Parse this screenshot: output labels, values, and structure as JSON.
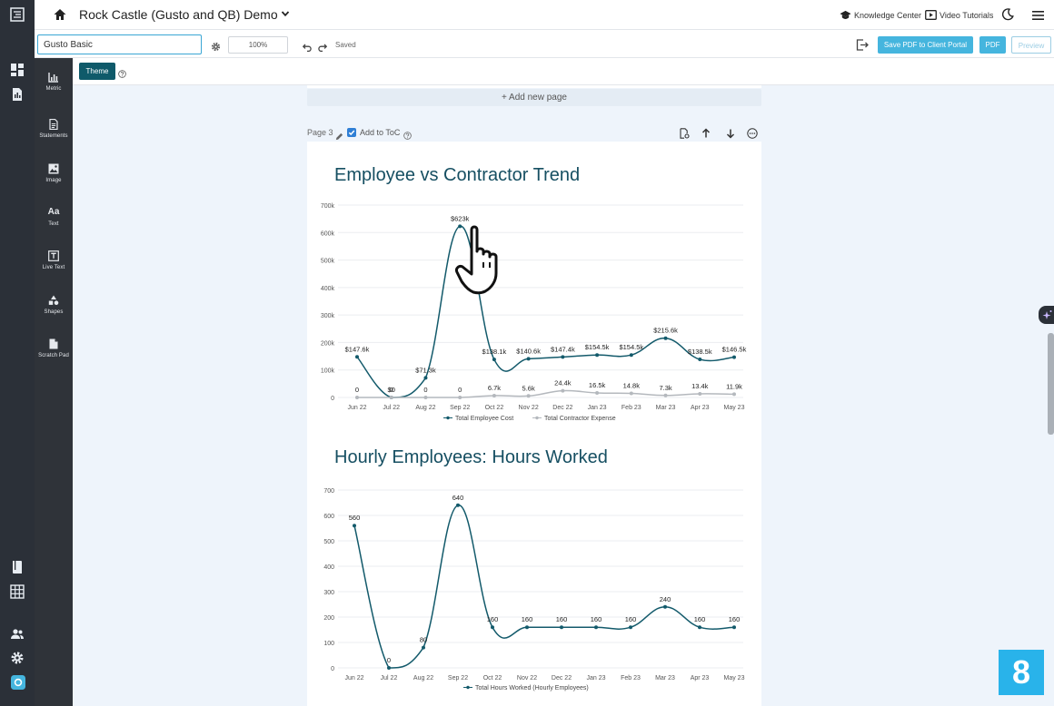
{
  "header": {
    "company_title": "Rock Castle (Gusto and QB) Demo",
    "knowledge_center": "Knowledge Center",
    "video_tutorials": "Video Tutorials"
  },
  "toolbar": {
    "template_name": "Gusto Basic",
    "zoom": "100%",
    "saved_status": "Saved",
    "save_pdf_label": "Save PDF to Client Portal",
    "pdf_label": "PDF",
    "preview_label": "Preview"
  },
  "tools": [
    {
      "label": "Metric",
      "icon": "metric-icon"
    },
    {
      "label": "Statements",
      "icon": "statements-icon"
    },
    {
      "label": "Image",
      "icon": "image-icon"
    },
    {
      "label": "Text",
      "icon": "text-icon"
    },
    {
      "label": "Live Text",
      "icon": "live-text-icon"
    },
    {
      "label": "Shapes",
      "icon": "shapes-icon"
    },
    {
      "label": "Scratch Pad",
      "icon": "scratch-pad-icon"
    }
  ],
  "theme_label": "Theme",
  "canvas": {
    "add_page_label": "+ Add new page",
    "page_label": "Page 3",
    "toc_label": "Add to ToC",
    "toc_checked": true
  },
  "colors": {
    "primary_series": "#135a6b",
    "secondary_series": "#b4b8bd",
    "accent": "#45b5de",
    "theme_button": "#0f5a6a"
  },
  "step_badge": "8",
  "chart_data": [
    {
      "type": "line",
      "title": "Employee vs Contractor Trend",
      "categories": [
        "Jun 22",
        "Jul 22",
        "Aug 22",
        "Sep 22",
        "Oct 22",
        "Nov 22",
        "Dec 22",
        "Jan 23",
        "Feb 23",
        "Mar 23",
        "Apr 23",
        "May 23"
      ],
      "y_ticks": [
        "0",
        "100k",
        "200k",
        "300k",
        "400k",
        "500k",
        "600k",
        "700k"
      ],
      "ylim": [
        0,
        700000
      ],
      "grid": true,
      "legend_position": "bottom",
      "series": [
        {
          "name": "Total Employee Cost",
          "values": [
            147600,
            0,
            71300,
            623000,
            138100,
            140600,
            147400,
            154500,
            154500,
            215600,
            138500,
            146500
          ],
          "labels": [
            "$147.6k",
            "$0",
            "$71.3k",
            "$623k",
            "$138.1k",
            "$140.6k",
            "$147.4k",
            "$154.5k",
            "$154.5k",
            "$215.6k",
            "$138.5k",
            "$146.5k"
          ]
        },
        {
          "name": "Total Contractor Expense",
          "values": [
            0,
            0,
            0,
            0,
            6700,
            5600,
            24400,
            16500,
            14800,
            7300,
            13400,
            11900
          ],
          "labels": [
            "0",
            "0",
            "0",
            "0",
            "6.7k",
            "5.6k",
            "24.4k",
            "16.5k",
            "14.8k",
            "7.3k",
            "13.4k",
            "11.9k"
          ]
        }
      ]
    },
    {
      "type": "line",
      "title": "Hourly Employees: Hours Worked",
      "categories": [
        "Jun 22",
        "Jul 22",
        "Aug 22",
        "Sep 22",
        "Oct 22",
        "Nov 22",
        "Dec 22",
        "Jan 23",
        "Feb 23",
        "Mar 23",
        "Apr 23",
        "May 23"
      ],
      "y_ticks": [
        "0",
        "100",
        "200",
        "300",
        "400",
        "500",
        "600",
        "700"
      ],
      "ylim": [
        0,
        700
      ],
      "grid": true,
      "legend_position": "bottom",
      "series": [
        {
          "name": "Total Hours Worked (Hourly Employees)",
          "values": [
            560,
            0,
            80,
            640,
            160,
            160,
            160,
            160,
            160,
            240,
            160,
            160
          ],
          "labels": [
            "560",
            "0",
            "80",
            "640",
            "160",
            "160",
            "160",
            "160",
            "160",
            "240",
            "160",
            "160"
          ]
        }
      ]
    }
  ]
}
